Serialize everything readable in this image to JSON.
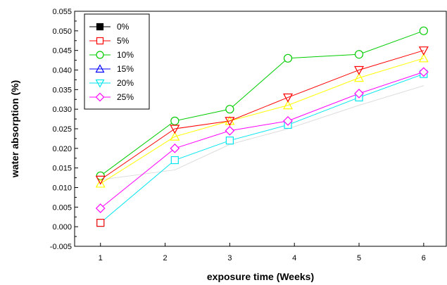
{
  "chart_data": {
    "type": "line",
    "title": "",
    "xlabel": "exposure time (Weeks)",
    "ylabel": "water absorption (%)",
    "xlim": [
      0.6,
      6.35
    ],
    "ylim": [
      -0.005,
      0.055
    ],
    "x_ticks": [
      "1",
      "2",
      "3",
      "4",
      "5",
      "6"
    ],
    "y_ticks": [
      "-0.005",
      "0.000",
      "0.005",
      "0.010",
      "0.015",
      "0.020",
      "0.025",
      "0.030",
      "0.035",
      "0.040",
      "0.045",
      "0.050",
      "0.055"
    ],
    "grid": false,
    "legend_position": "top-left",
    "series": [
      {
        "name": "0%",
        "color": "#000000",
        "marker": "square-filled",
        "x": [
          1,
          2.15,
          3,
          3.9,
          5,
          6
        ],
        "y": [
          0.012,
          0.0145,
          0.021,
          0.025,
          0.031,
          0.036
        ],
        "points_visible": false
      },
      {
        "name": "5%",
        "color": "#ff0000",
        "marker": "square",
        "x": [
          1,
          2.15,
          3,
          3.9,
          5,
          6
        ],
        "y": [
          0.001,
          0.017,
          0.022,
          0.026,
          0.033,
          0.039
        ]
      },
      {
        "name": "10%",
        "color": "#00cc00",
        "marker": "circle",
        "x": [
          1,
          2.15,
          3,
          3.9,
          5,
          6
        ],
        "y": [
          0.013,
          0.027,
          0.03,
          0.043,
          0.044,
          0.05
        ]
      },
      {
        "name": "15%",
        "color": "#0000ff",
        "marker": "triangle-up",
        "x": [
          1,
          2.15,
          3,
          3.9,
          5,
          6
        ],
        "y": [
          0.011,
          0.023,
          0.027,
          0.031,
          0.038,
          0.043
        ],
        "points_visible": false
      },
      {
        "name": "20%",
        "color": "#00e5ee",
        "marker": "triangle-down",
        "x": [
          1,
          2.15,
          3,
          3.9,
          5,
          6
        ],
        "y": [
          0.012,
          0.025,
          0.027,
          0.033,
          0.04,
          0.045
        ]
      },
      {
        "name": "25%",
        "color": "#ff00ff",
        "marker": "diamond",
        "x": [
          1,
          2.15,
          3,
          3.9,
          5,
          6
        ],
        "y": [
          0.0047,
          0.02,
          0.0245,
          0.027,
          0.034,
          0.0395
        ]
      }
    ],
    "overlays": [
      {
        "color": "#ffff00",
        "marker": "triangle-up",
        "x": [
          1,
          2.15,
          3,
          3.9,
          5,
          6
        ],
        "y": [
          0.011,
          0.023,
          0.027,
          0.031,
          0.038,
          0.043
        ]
      },
      {
        "color": "#ff0000",
        "marker": "triangle-down",
        "x": [
          1,
          2.15,
          3,
          3.9,
          5,
          6
        ],
        "y": [
          0.012,
          0.025,
          0.027,
          0.033,
          0.04,
          0.045
        ]
      }
    ]
  }
}
